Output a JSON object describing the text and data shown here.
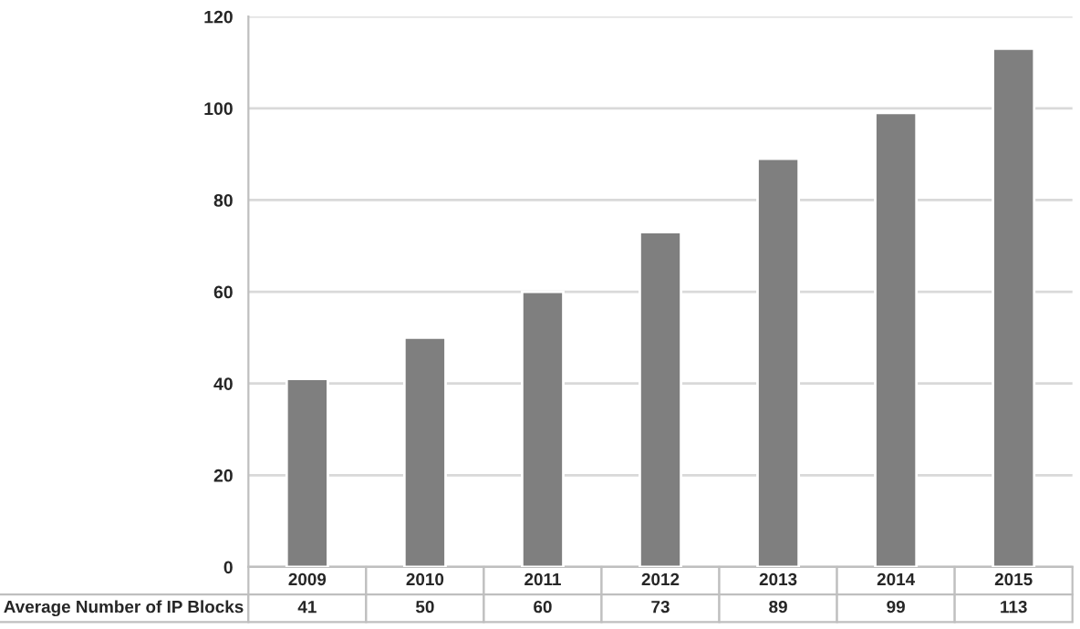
{
  "chart_data": {
    "type": "bar",
    "categories": [
      "2009",
      "2010",
      "2011",
      "2012",
      "2013",
      "2014",
      "2015"
    ],
    "series": [
      {
        "name": "Average Number of IP Blocks",
        "color": "#7f7f7f",
        "values": [
          41,
          50,
          60,
          73,
          89,
          99,
          113
        ]
      }
    ],
    "ylim": [
      0,
      120
    ],
    "yticks": [
      0,
      20,
      40,
      60,
      80,
      100,
      120
    ],
    "grid": "y",
    "data_labels": true,
    "legend": false
  }
}
